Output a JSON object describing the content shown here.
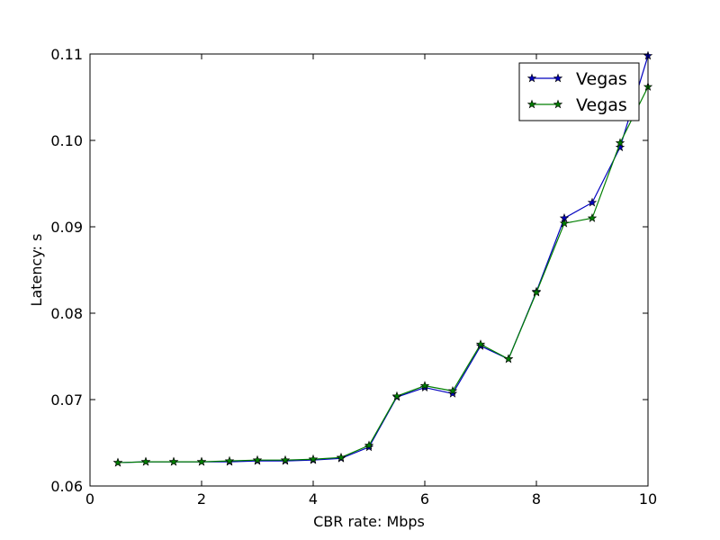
{
  "chart_data": {
    "type": "line",
    "title": "",
    "xlabel": "CBR rate: Mbps",
    "ylabel": "Latency: s",
    "xlim": [
      0,
      10
    ],
    "ylim": [
      0.06,
      0.11
    ],
    "xticks": [
      0,
      2,
      4,
      6,
      8,
      10
    ],
    "xtick_labels": [
      "0",
      "2",
      "4",
      "6",
      "8",
      "10"
    ],
    "yticks": [
      0.06,
      0.07,
      0.08,
      0.09,
      0.1,
      0.11
    ],
    "ytick_labels": [
      "0.06",
      "0.07",
      "0.08",
      "0.09",
      "0.10",
      "0.11"
    ],
    "grid": false,
    "legend_position": "top-right",
    "x": [
      0.5,
      1.0,
      1.5,
      2.0,
      2.5,
      3.0,
      3.5,
      4.0,
      4.5,
      5.0,
      5.5,
      6.0,
      6.5,
      7.0,
      7.5,
      8.0,
      8.5,
      9.0,
      9.5,
      10.0
    ],
    "series": [
      {
        "name": "Vegas",
        "color": "#0000bf",
        "marker": "star",
        "values": [
          0.0627,
          0.0628,
          0.0628,
          0.0628,
          0.0628,
          0.0629,
          0.0629,
          0.063,
          0.0632,
          0.0645,
          0.0703,
          0.0714,
          0.0707,
          0.0762,
          0.0747,
          0.0825,
          0.091,
          0.0928,
          0.0992,
          0.1098
        ]
      },
      {
        "name": "Vegas",
        "color": "#007f00",
        "marker": "star",
        "values": [
          0.0627,
          0.0628,
          0.0628,
          0.0628,
          0.0629,
          0.063,
          0.063,
          0.0631,
          0.0633,
          0.0647,
          0.0704,
          0.0716,
          0.071,
          0.0764,
          0.0747,
          0.0824,
          0.0904,
          0.091,
          0.0997,
          0.1062
        ]
      }
    ]
  }
}
